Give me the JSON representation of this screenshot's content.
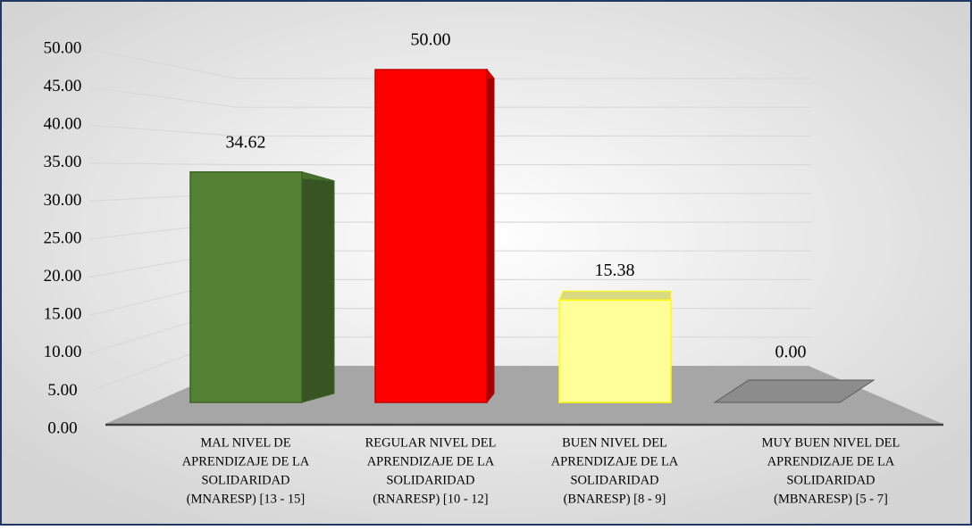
{
  "chart_data": {
    "type": "bar3d",
    "categories": [
      [
        "MAL NIVEL DE",
        "APRENDIZAJE DE LA",
        "SOLIDARIDAD",
        "(MNARESP) [13 - 15]"
      ],
      [
        "REGULAR NIVEL DEL",
        "APRENDIZAJE DE LA",
        "SOLIDARIDAD",
        "(RNARESP) [10 - 12]"
      ],
      [
        "BUEN NIVEL DEL",
        "APRENDIZAJE DE LA",
        "SOLIDARIDAD",
        "(BNARESP) [8 - 9]"
      ],
      [
        "MUY BUEN NIVEL DEL",
        "APRENDIZAJE DE LA",
        "SOLIDARIDAD",
        "(MBNARESP) [5 - 7]"
      ]
    ],
    "values": [
      34.62,
      50,
      15.38,
      0
    ],
    "value_labels": [
      "34.62",
      "50.00",
      "15.38",
      "0.00"
    ],
    "colors": [
      "#548235",
      "#ff0000",
      "#ffff99",
      "#8c8c8c"
    ],
    "ylim": [
      0,
      50
    ],
    "yticks": [
      {
        "value": 0,
        "label": "0.00"
      },
      {
        "value": 5,
        "label": "5.00"
      },
      {
        "value": 10,
        "label": "10.00"
      },
      {
        "value": 15,
        "label": "15.00"
      },
      {
        "value": 20,
        "label": "20.00"
      },
      {
        "value": 25,
        "label": "25.00"
      },
      {
        "value": 30,
        "label": "30.00"
      },
      {
        "value": 35,
        "label": "35.00"
      },
      {
        "value": 40,
        "label": "40.00"
      },
      {
        "value": 45,
        "label": "45.00"
      },
      {
        "value": 50,
        "label": "50.00"
      }
    ],
    "grid": true
  }
}
